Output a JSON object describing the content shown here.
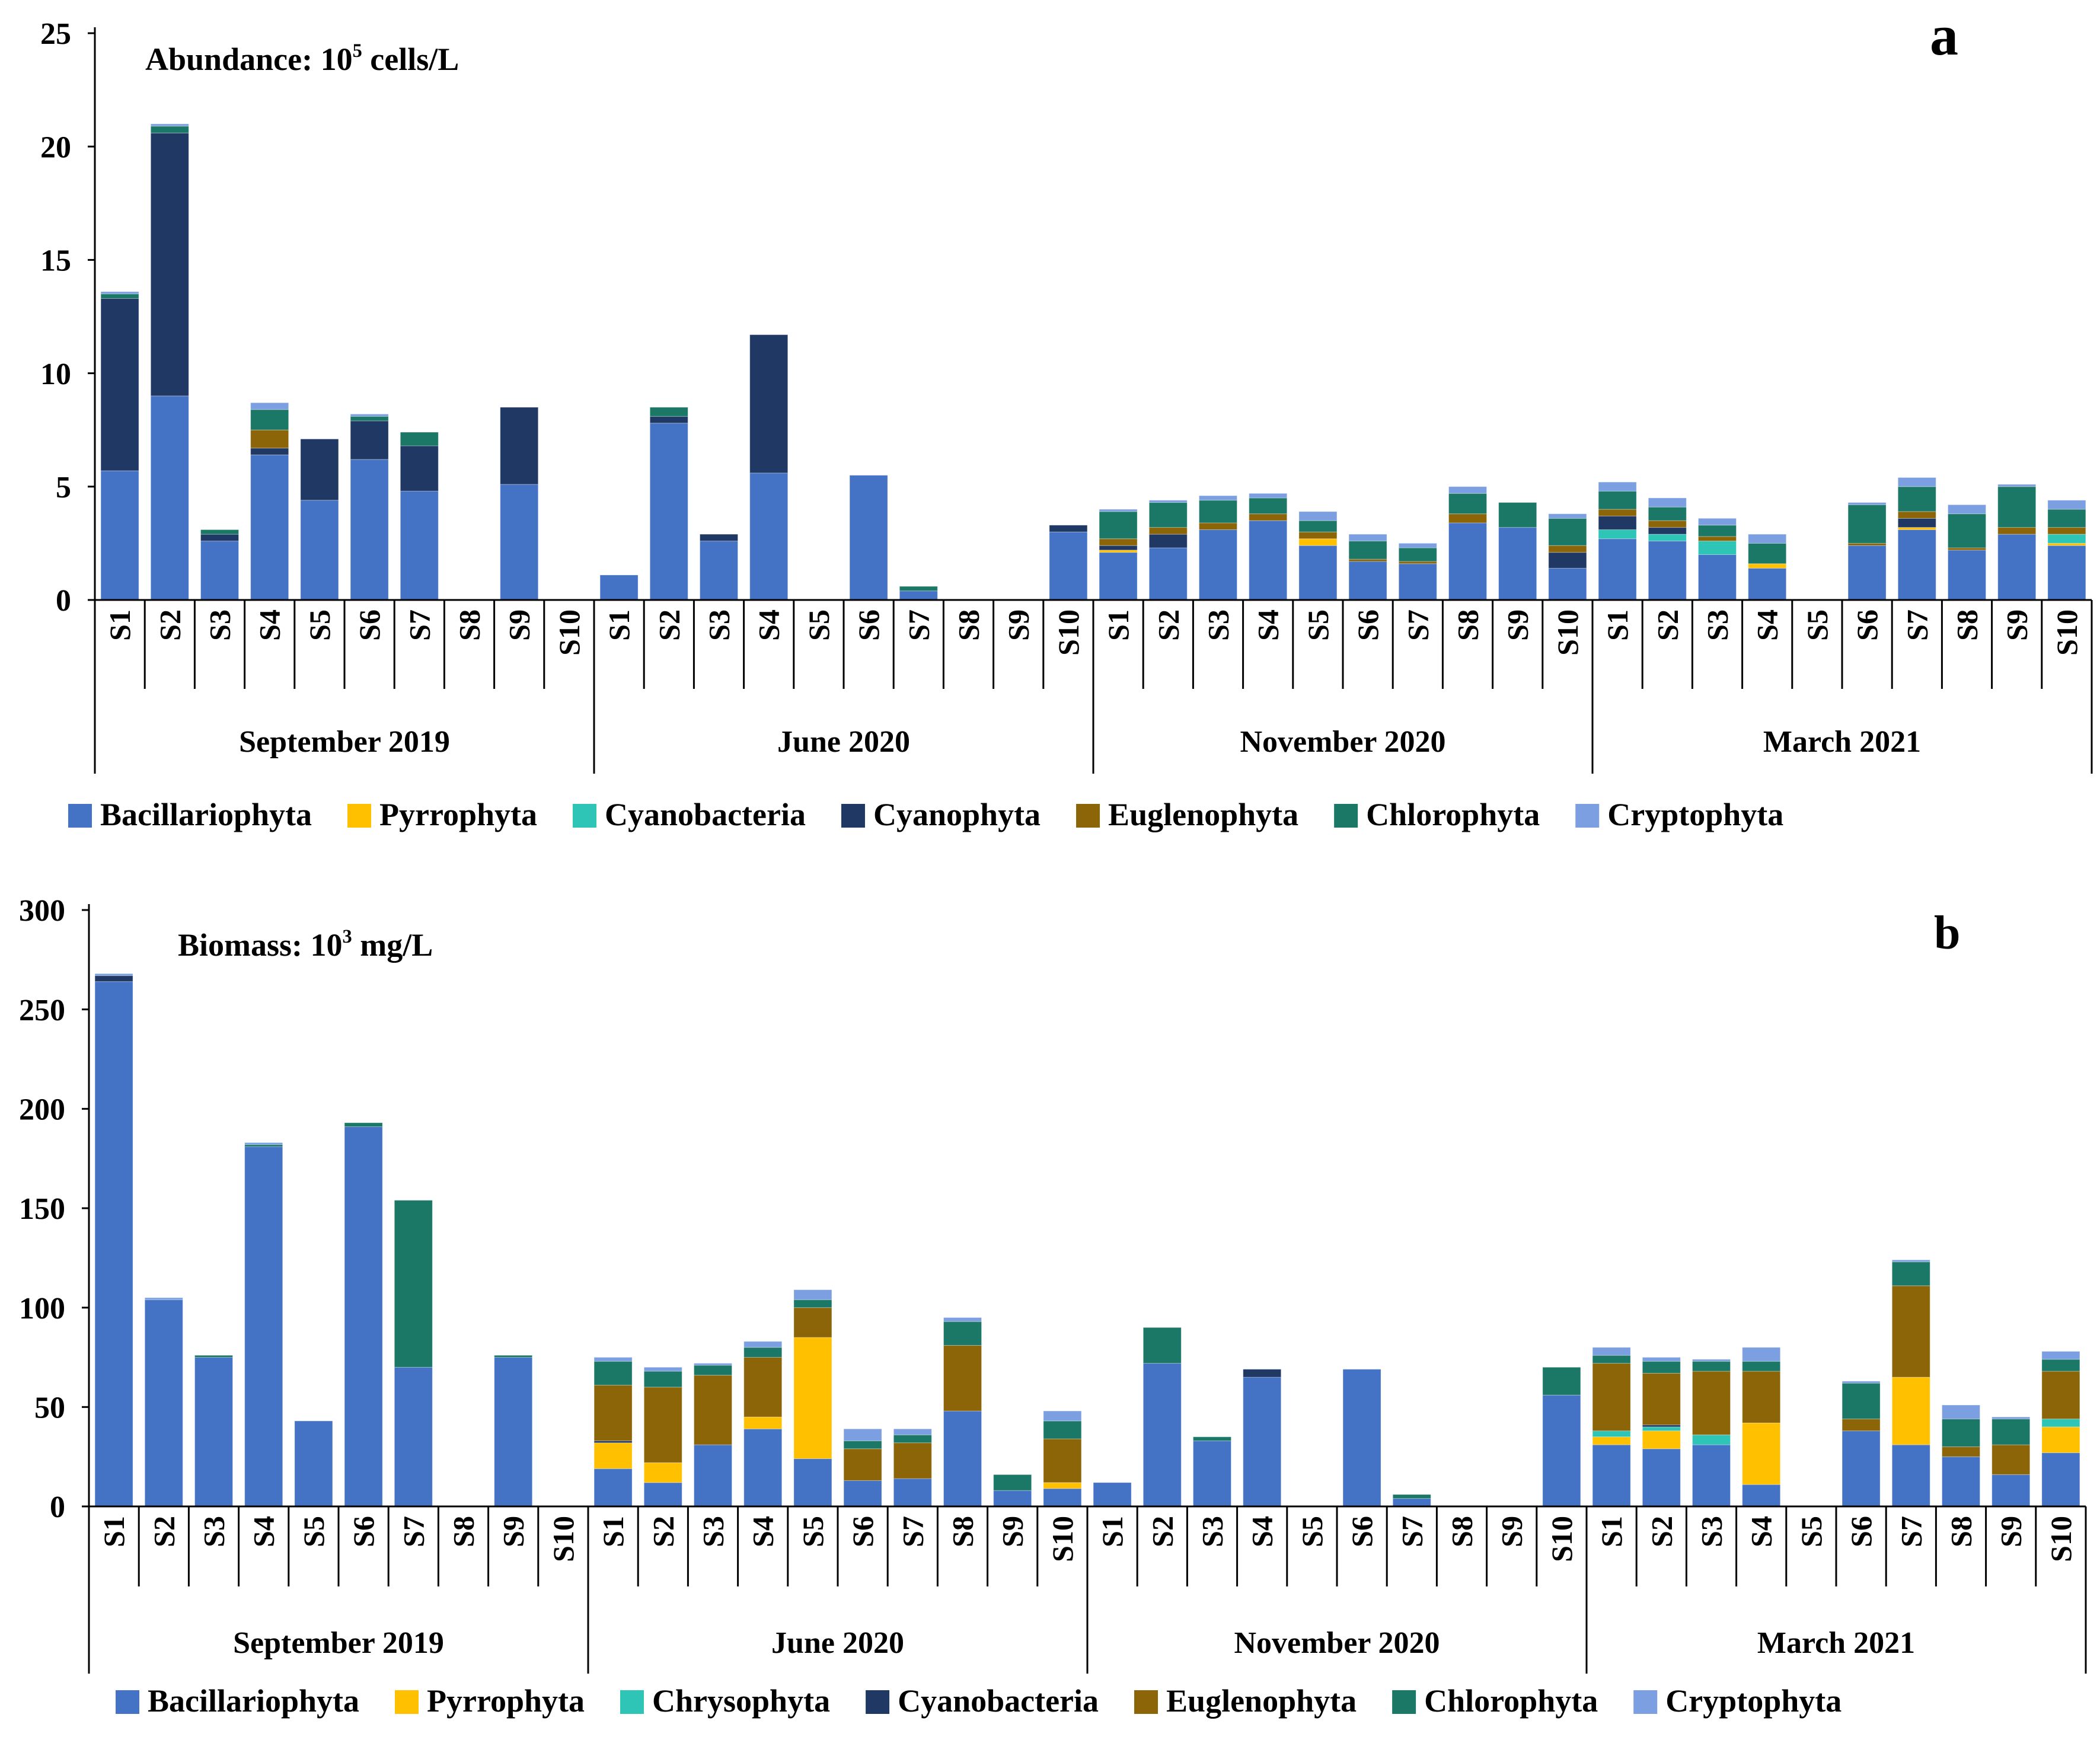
{
  "sites": [
    "S1",
    "S2",
    "S3",
    "S4",
    "S5",
    "S6",
    "S7",
    "S8",
    "S9",
    "S10"
  ],
  "periods": [
    "September 2019",
    "June 2020",
    "November 2020",
    "March 2021"
  ],
  "chart_data": [
    {
      "type": "bar",
      "stacked": true,
      "title": "Abundance: 10⁵ cells/L",
      "panel_label": "a",
      "ylim": [
        0,
        25
      ],
      "yticks": [
        0,
        5,
        10,
        15,
        20,
        25
      ],
      "groups": [
        "September 2019",
        "June 2020",
        "November 2020",
        "March 2021"
      ],
      "categories": [
        "S1",
        "S2",
        "S3",
        "S4",
        "S5",
        "S6",
        "S7",
        "S8",
        "S9",
        "S10"
      ],
      "series": [
        {
          "name": "Bacillariophyta",
          "color": "#4472C4",
          "values": [
            [
              5.7,
              9.0,
              2.6,
              6.4,
              4.4,
              6.2,
              4.8,
              0,
              5.1,
              0
            ],
            [
              1.1,
              7.8,
              2.6,
              5.6,
              0,
              5.5,
              0.4,
              0,
              0,
              3.0
            ],
            [
              2.1,
              2.3,
              3.1,
              3.5,
              2.4,
              1.7,
              1.6,
              3.4,
              3.2,
              1.4
            ],
            [
              2.7,
              2.6,
              2.0,
              1.4,
              0,
              2.4,
              3.1,
              2.2,
              2.9,
              2.4
            ]
          ]
        },
        {
          "name": "Pyrrophyta",
          "color": "#FFC000",
          "values": [
            [
              0,
              0,
              0,
              0,
              0,
              0,
              0,
              0,
              0,
              0
            ],
            [
              0,
              0,
              0,
              0,
              0,
              0,
              0,
              0,
              0,
              0
            ],
            [
              0.1,
              0,
              0,
              0,
              0.3,
              0,
              0,
              0,
              0,
              0
            ],
            [
              0,
              0,
              0,
              0.2,
              0,
              0,
              0.1,
              0,
              0,
              0.1
            ]
          ]
        },
        {
          "name": "Cyanobacteria",
          "color": "#2EC4B6",
          "values": [
            [
              0,
              0,
              0,
              0,
              0,
              0,
              0,
              0,
              0,
              0
            ],
            [
              0,
              0,
              0,
              0,
              0,
              0,
              0,
              0,
              0,
              0
            ],
            [
              0,
              0,
              0,
              0,
              0,
              0,
              0,
              0,
              0,
              0
            ],
            [
              0.4,
              0.3,
              0.6,
              0,
              0,
              0,
              0,
              0,
              0,
              0.4
            ]
          ]
        },
        {
          "name": "Cyanophyta",
          "color": "#203864",
          "values": [
            [
              7.6,
              11.6,
              0.3,
              0.3,
              2.7,
              1.7,
              2.0,
              0,
              3.4,
              0
            ],
            [
              0,
              0.3,
              0.3,
              6.1,
              0,
              0,
              0,
              0,
              0,
              0.3
            ],
            [
              0.2,
              0.6,
              0,
              0,
              0,
              0,
              0,
              0,
              0,
              0.7
            ],
            [
              0.6,
              0.3,
              0,
              0,
              0,
              0,
              0.4,
              0,
              0,
              0
            ]
          ]
        },
        {
          "name": "Euglenophyta",
          "color": "#8B6508",
          "values": [
            [
              0,
              0,
              0,
              0.8,
              0,
              0,
              0,
              0,
              0,
              0
            ],
            [
              0,
              0,
              0,
              0,
              0,
              0,
              0,
              0,
              0,
              0
            ],
            [
              0.3,
              0.3,
              0.3,
              0.3,
              0.3,
              0.1,
              0.1,
              0.4,
              0,
              0.3
            ],
            [
              0.3,
              0.3,
              0.2,
              0,
              0,
              0.1,
              0.3,
              0.1,
              0.3,
              0.3
            ]
          ]
        },
        {
          "name": "Chlorophyta",
          "color": "#1B7766",
          "values": [
            [
              0.2,
              0.3,
              0.2,
              0.9,
              0,
              0.2,
              0.6,
              0,
              0,
              0
            ],
            [
              0,
              0.4,
              0,
              0,
              0,
              0,
              0.2,
              0,
              0,
              0
            ],
            [
              1.2,
              1.1,
              1.0,
              0.7,
              0.5,
              0.8,
              0.6,
              0.9,
              1.1,
              1.2
            ],
            [
              0.8,
              0.6,
              0.5,
              0.9,
              0,
              1.7,
              1.1,
              1.5,
              1.8,
              0.8
            ]
          ]
        },
        {
          "name": "Cryptophyta",
          "color": "#7B9FE0",
          "values": [
            [
              0.1,
              0.1,
              0,
              0.3,
              0,
              0.1,
              0,
              0,
              0,
              0
            ],
            [
              0,
              0,
              0,
              0,
              0,
              0,
              0,
              0,
              0,
              0
            ],
            [
              0.1,
              0.1,
              0.2,
              0.2,
              0.4,
              0.3,
              0.2,
              0.3,
              0,
              0.2
            ],
            [
              0.4,
              0.4,
              0.3,
              0.4,
              0,
              0.1,
              0.4,
              0.4,
              0.1,
              0.4
            ]
          ]
        }
      ]
    },
    {
      "type": "bar",
      "stacked": true,
      "title": "Biomass: 10³ mg/L",
      "panel_label": "b",
      "ylim": [
        0,
        300
      ],
      "yticks": [
        0,
        50,
        100,
        150,
        200,
        250,
        300
      ],
      "groups": [
        "September 2019",
        "June 2020",
        "November 2020",
        "March 2021"
      ],
      "categories": [
        "S1",
        "S2",
        "S3",
        "S4",
        "S5",
        "S6",
        "S7",
        "S8",
        "S9",
        "S10"
      ],
      "series": [
        {
          "name": "Bacillariophyta",
          "color": "#4472C4",
          "values": [
            [
              264,
              104,
              75,
              181,
              43,
              191,
              70,
              0,
              75,
              0
            ],
            [
              19,
              12,
              31,
              39,
              24,
              13,
              14,
              48,
              8,
              9
            ],
            [
              12,
              72,
              33,
              65,
              0,
              69,
              4,
              0,
              0,
              56
            ],
            [
              31,
              29,
              31,
              11,
              0,
              38,
              31,
              25,
              16,
              27
            ]
          ]
        },
        {
          "name": "Pyrrophyta",
          "color": "#FFC000",
          "values": [
            [
              0,
              0,
              0,
              0,
              0,
              0,
              0,
              0,
              0,
              0
            ],
            [
              13,
              10,
              0,
              6,
              61,
              0,
              0,
              0,
              0,
              3
            ],
            [
              0,
              0,
              0,
              0,
              0,
              0,
              0,
              0,
              0,
              0
            ],
            [
              4,
              9,
              0,
              31,
              0,
              0,
              34,
              0,
              0,
              13
            ]
          ]
        },
        {
          "name": "Chrysophyta",
          "color": "#2EC4B6",
          "values": [
            [
              0,
              0,
              0,
              0,
              0,
              0,
              0,
              0,
              0,
              0
            ],
            [
              0,
              0,
              0,
              0,
              0,
              0,
              0,
              0,
              0,
              0
            ],
            [
              0,
              0,
              0,
              0,
              0,
              0,
              0,
              0,
              0,
              0
            ],
            [
              3,
              2,
              5,
              0,
              0,
              0,
              0,
              0,
              0,
              4
            ]
          ]
        },
        {
          "name": "Cyanobacteria",
          "color": "#203864",
          "values": [
            [
              3,
              0,
              0,
              0,
              0,
              0,
              0,
              0,
              0,
              0
            ],
            [
              1,
              0,
              0,
              0,
              0,
              0,
              0,
              0,
              0,
              0
            ],
            [
              0,
              0,
              0,
              4,
              0,
              0,
              0,
              0,
              0,
              0
            ],
            [
              0,
              1,
              0,
              0,
              0,
              0,
              0,
              0,
              0,
              0
            ]
          ]
        },
        {
          "name": "Euglenophyta",
          "color": "#8B6508",
          "values": [
            [
              0,
              0,
              0,
              0,
              0,
              0,
              0,
              0,
              0,
              0
            ],
            [
              28,
              38,
              35,
              30,
              15,
              16,
              18,
              33,
              0,
              22
            ],
            [
              0,
              0,
              0,
              0,
              0,
              0,
              0,
              0,
              0,
              0
            ],
            [
              34,
              26,
              32,
              26,
              0,
              6,
              46,
              5,
              15,
              24
            ]
          ]
        },
        {
          "name": "Chlorophyta",
          "color": "#1B7766",
          "values": [
            [
              0,
              0,
              1,
              1,
              0,
              2,
              84,
              0,
              1,
              0
            ],
            [
              12,
              8,
              5,
              5,
              4,
              4,
              4,
              12,
              8,
              9
            ],
            [
              0,
              18,
              2,
              0,
              0,
              0,
              2,
              0,
              0,
              14
            ],
            [
              4,
              6,
              5,
              5,
              0,
              18,
              12,
              14,
              13,
              6
            ]
          ]
        },
        {
          "name": "Cryptophyta",
          "color": "#7B9FE0",
          "values": [
            [
              1,
              1,
              0,
              1,
              0,
              0,
              0,
              0,
              0,
              0
            ],
            [
              2,
              2,
              1,
              3,
              5,
              6,
              3,
              2,
              0,
              5
            ],
            [
              0,
              0,
              0,
              0,
              0,
              0,
              0,
              0,
              0,
              0
            ],
            [
              4,
              2,
              1,
              7,
              0,
              1,
              1,
              7,
              1,
              4
            ]
          ]
        }
      ]
    }
  ]
}
